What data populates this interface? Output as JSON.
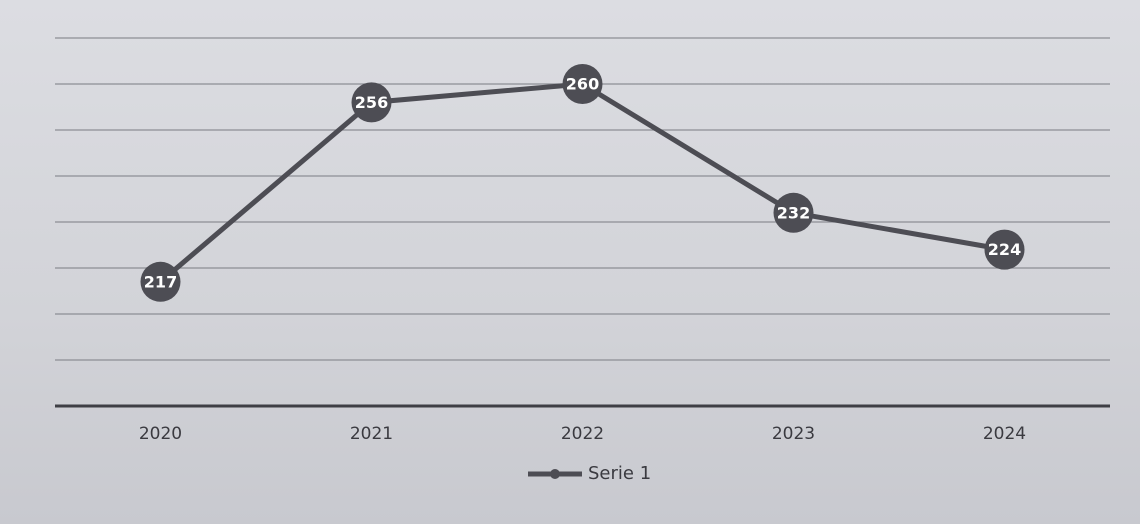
{
  "chart_data": {
    "type": "line",
    "categories": [
      "2020",
      "2021",
      "2022",
      "2023",
      "2024"
    ],
    "series": [
      {
        "name": "Serie 1",
        "color": "#4d4d54",
        "values": [
          217,
          256,
          260,
          232,
          224
        ]
      }
    ],
    "ylim": [
      190,
      270
    ],
    "grid": true,
    "legend": "bottom"
  }
}
